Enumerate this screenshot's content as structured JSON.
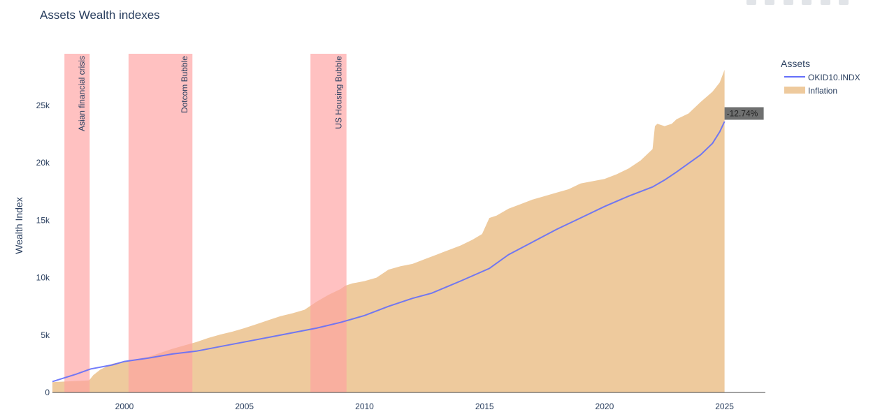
{
  "chart_data": {
    "type": "line",
    "title": "Assets Wealth indexes",
    "ylabel": "Wealth Index",
    "xlabel": "",
    "xlim": [
      1997.0,
      2026.7
    ],
    "ylim": [
      0,
      29500
    ],
    "x_ticks": [
      2000,
      2005,
      2010,
      2015,
      2020,
      2025
    ],
    "y_ticks": [
      {
        "value": 0,
        "label": "0"
      },
      {
        "value": 5000,
        "label": "5k"
      },
      {
        "value": 10000,
        "label": "10k"
      },
      {
        "value": 15000,
        "label": "15k"
      },
      {
        "value": 20000,
        "label": "20k"
      },
      {
        "value": 25000,
        "label": "25k"
      }
    ],
    "grid": false,
    "legend": {
      "title": "Assets",
      "placement": "top-right"
    },
    "recession_bands": [
      {
        "label": "Asian financial crisis",
        "start": 1997.5,
        "end": 1998.55,
        "color": "#ff9f9f"
      },
      {
        "label": "Dotcom Bubble",
        "start": 2000.17,
        "end": 2002.83,
        "color": "#ff9f9f"
      },
      {
        "label": "US Housing Bubble",
        "start": 2007.75,
        "end": 2009.25,
        "color": "#ff9f9f"
      }
    ],
    "series": [
      {
        "name": "OKID10.INDX",
        "kind": "line",
        "color": "#636efa",
        "x": [
          1997.0,
          1998.0,
          1998.6,
          1999.5,
          2000.0,
          2001.0,
          2002.0,
          2003.0,
          2004.0,
          2005.0,
          2006.0,
          2007.0,
          2008.0,
          2009.0,
          2010.0,
          2011.0,
          2012.0,
          2012.8,
          2014.0,
          2015.2,
          2016.0,
          2017.0,
          2018.0,
          2019.0,
          2020.0,
          2021.0,
          2022.0,
          2022.5,
          2023.0,
          2024.0,
          2024.5,
          2024.8,
          2025.0
        ],
        "y": [
          950,
          1600,
          2050,
          2400,
          2700,
          3000,
          3350,
          3600,
          4000,
          4400,
          4800,
          5200,
          5600,
          6100,
          6700,
          7500,
          8200,
          8650,
          9700,
          10800,
          12000,
          13100,
          14200,
          15200,
          16200,
          17100,
          17900,
          18500,
          19200,
          20700,
          21700,
          22700,
          23600
        ]
      },
      {
        "name": "Inflation",
        "kind": "area",
        "color": "#e8b577",
        "x": [
          1997.0,
          1997.5,
          1998.5,
          1998.55,
          1998.7,
          1999.0,
          1999.5,
          2000.0,
          2001.0,
          2001.5,
          2002.0,
          2002.5,
          2003.0,
          2003.5,
          2004.0,
          2004.5,
          2005.0,
          2005.5,
          2006.0,
          2006.5,
          2007.0,
          2007.5,
          2008.0,
          2008.5,
          2009.0,
          2009.2,
          2009.5,
          2010.0,
          2010.5,
          2011.0,
          2011.5,
          2012.0,
          2012.5,
          2013.0,
          2013.5,
          2014.0,
          2014.5,
          2014.9,
          2015.2,
          2015.5,
          2016.0,
          2016.5,
          2017.0,
          2017.5,
          2018.0,
          2018.5,
          2019.0,
          2019.5,
          2020.0,
          2020.5,
          2021.0,
          2021.5,
          2022.0,
          2022.1,
          2022.2,
          2022.5,
          2022.8,
          2023.0,
          2023.5,
          2024.0,
          2024.5,
          2024.8,
          2025.0
        ],
        "y": [
          900,
          950,
          1050,
          1100,
          1500,
          2000,
          2500,
          2700,
          3100,
          3450,
          3800,
          4100,
          4400,
          4750,
          5050,
          5300,
          5600,
          5950,
          6300,
          6650,
          6900,
          7200,
          7900,
          8500,
          9000,
          9300,
          9500,
          9700,
          10000,
          10700,
          11000,
          11200,
          11600,
          12000,
          12400,
          12800,
          13300,
          13800,
          15200,
          15400,
          16000,
          16400,
          16800,
          17100,
          17400,
          17700,
          18200,
          18400,
          18600,
          19000,
          19500,
          20200,
          21200,
          23200,
          23400,
          23200,
          23400,
          23800,
          24300,
          25300,
          26200,
          27000,
          28100
        ]
      }
    ],
    "annotations": [
      {
        "text": "-12.74%",
        "x": 2025.0,
        "y": 24300,
        "target": "OKID10.INDX"
      }
    ]
  }
}
